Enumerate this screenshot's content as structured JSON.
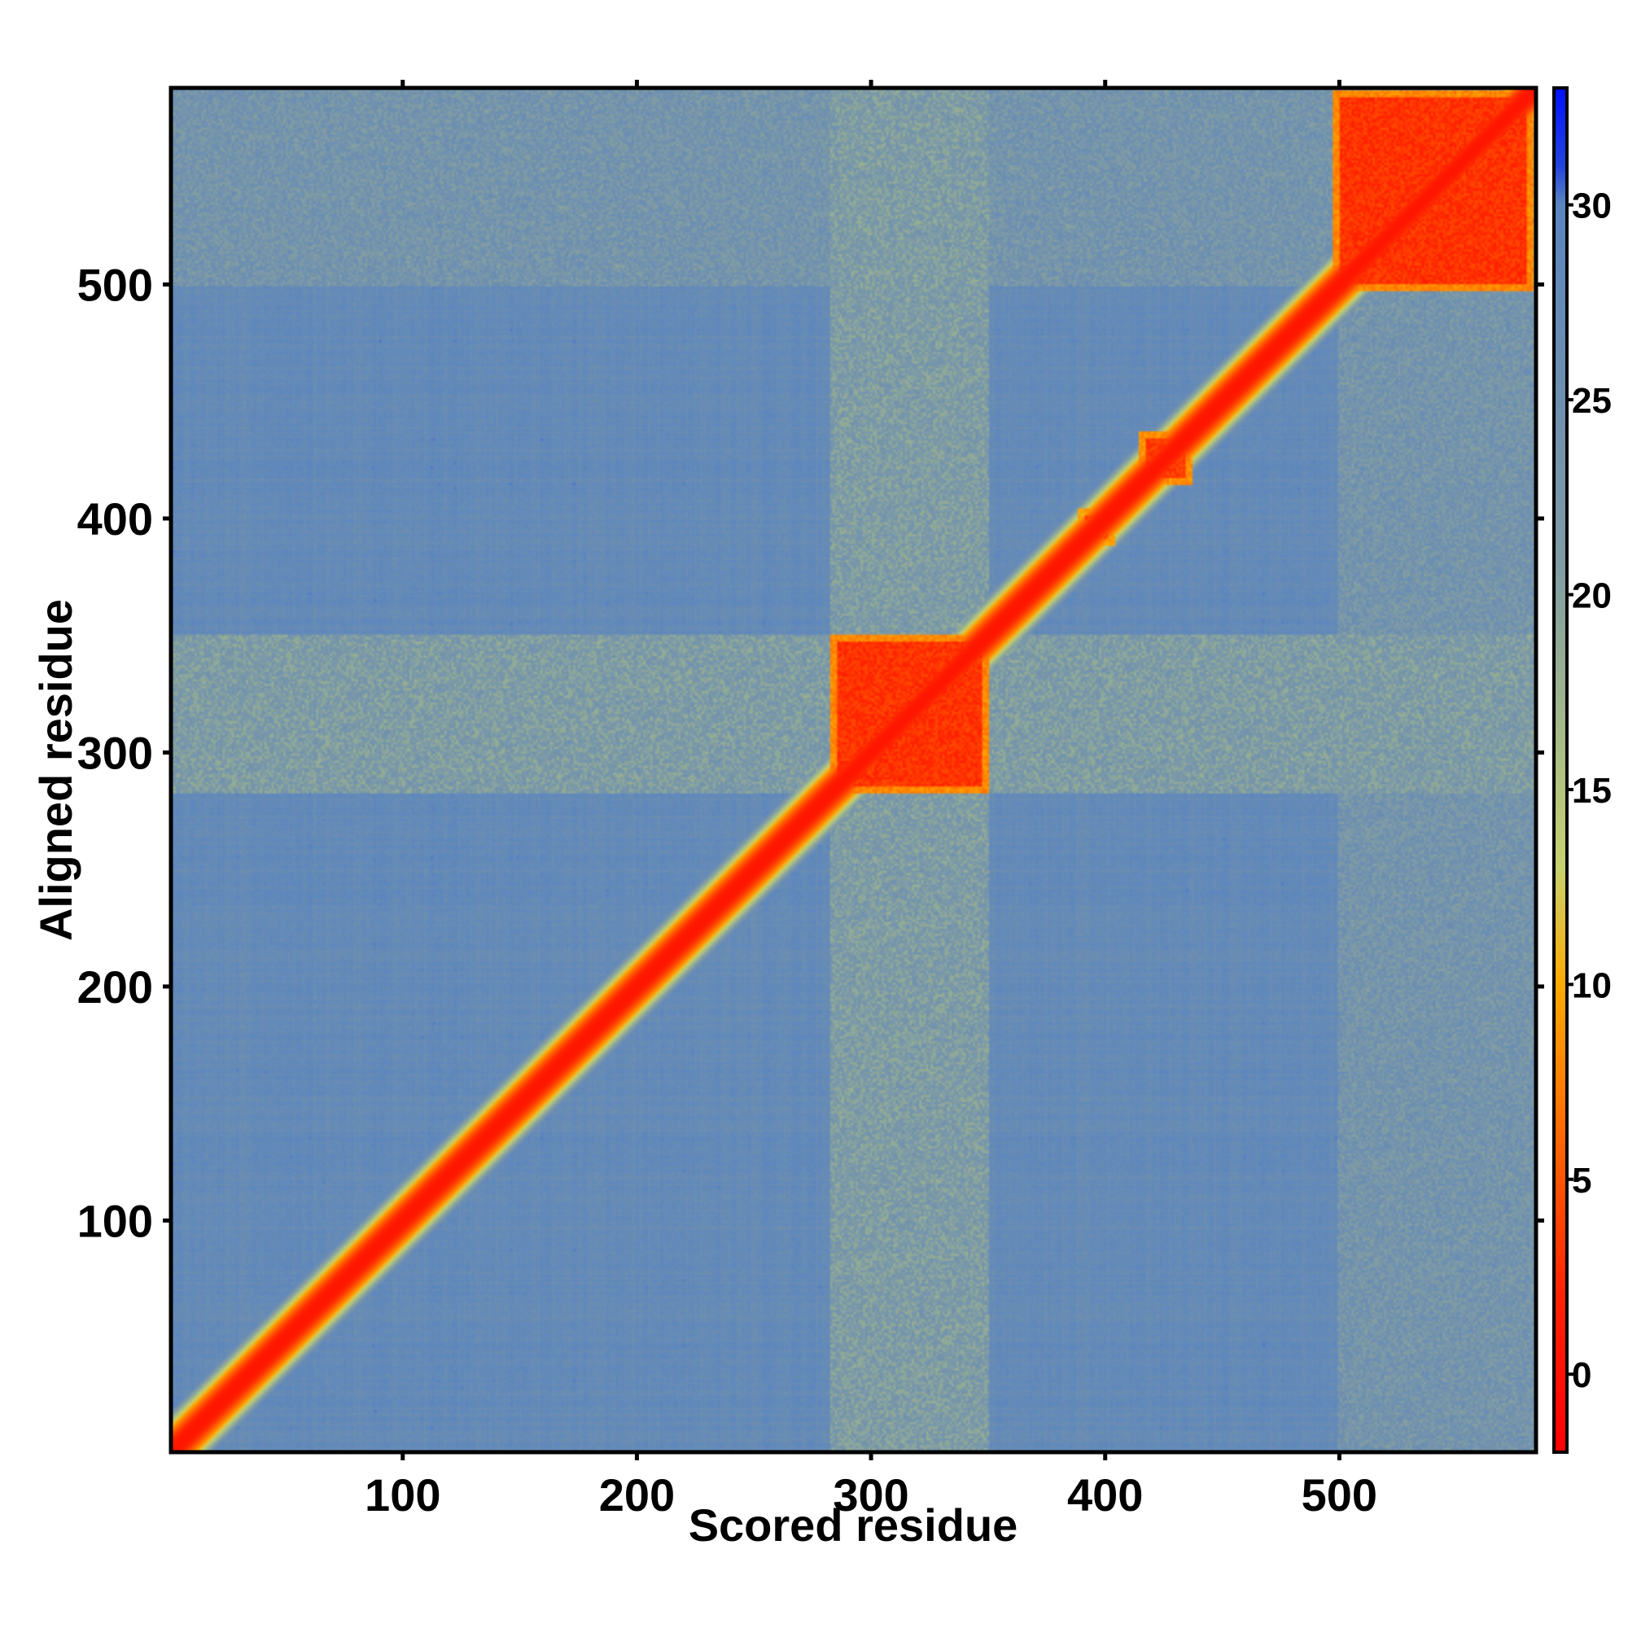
{
  "chart_data": {
    "type": "heatmap",
    "title": "",
    "xlabel": "Scored residue",
    "ylabel": "Aligned residue",
    "n_residues": 584,
    "xlim": [
      1,
      584
    ],
    "ylim": [
      1,
      584
    ],
    "x_ticks": [
      100,
      200,
      300,
      400,
      500
    ],
    "y_ticks": [
      100,
      200,
      300,
      400,
      500
    ],
    "colorbar": {
      "range": [
        -2,
        33
      ],
      "ticks": [
        0,
        5,
        10,
        15,
        20,
        25,
        30
      ],
      "stops": [
        {
          "value": -2,
          "color": "#ff0000"
        },
        {
          "value": 2,
          "color": "#ff2200"
        },
        {
          "value": 6,
          "color": "#ff6600"
        },
        {
          "value": 10,
          "color": "#ffaa00"
        },
        {
          "value": 13,
          "color": "#c8d26e"
        },
        {
          "value": 17,
          "color": "#a0b68c"
        },
        {
          "value": 21,
          "color": "#7e9ba6"
        },
        {
          "value": 26,
          "color": "#6b8db2"
        },
        {
          "value": 30,
          "color": "#5a86c0"
        },
        {
          "value": 31,
          "color": "#2244e0"
        },
        {
          "value": 33,
          "color": "#0011ff"
        }
      ]
    },
    "background_value": 27.5,
    "low_error_domains": [
      {
        "start": 283,
        "end": 350,
        "value": 1.5
      },
      {
        "start": 389,
        "end": 404,
        "value": 3.0
      },
      {
        "start": 415,
        "end": 437,
        "value": 2.0
      },
      {
        "start": 498,
        "end": 583,
        "value": 1.5
      }
    ],
    "diagonal": {
      "value": 0.5,
      "halfwidth": 8
    },
    "elevated_bands": [
      {
        "start": 283,
        "end": 350,
        "value": 20.0
      },
      {
        "start": 500,
        "end": 584,
        "value": 22.0
      }
    ]
  }
}
